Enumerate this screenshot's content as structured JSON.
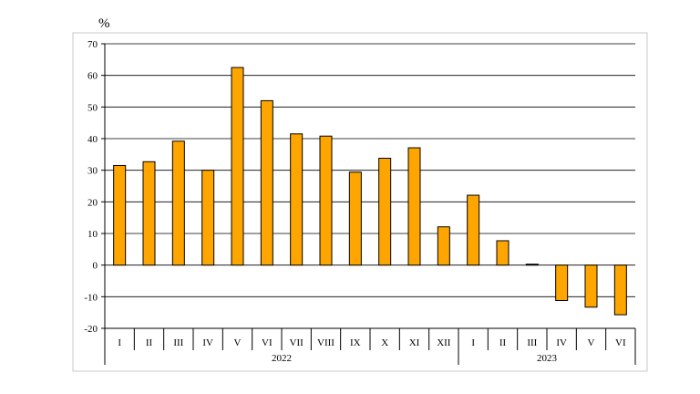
{
  "chart_data": {
    "type": "bar",
    "ylabel": "%",
    "ylim": [
      -20,
      70
    ],
    "yticks": [
      70,
      60,
      50,
      40,
      30,
      20,
      10,
      0,
      -10,
      -20
    ],
    "grid": true,
    "categories": [
      "I",
      "II",
      "III",
      "IV",
      "V",
      "VI",
      "VII",
      "VIII",
      "IX",
      "X",
      "XI",
      "XII",
      "I",
      "II",
      "III",
      "IV",
      "V",
      "VI"
    ],
    "years": [
      {
        "label": "2022",
        "count": 12
      },
      {
        "label": "2023",
        "count": 6
      }
    ],
    "values": [
      31.5,
      32.7,
      39.2,
      30.0,
      62.5,
      52.0,
      41.5,
      40.8,
      29.4,
      33.8,
      37.1,
      12.1,
      22.1,
      7.7,
      0.3,
      -11.2,
      -13.3,
      -15.7
    ],
    "bar_color": "#FFA500",
    "bar_stroke": "#000000"
  }
}
